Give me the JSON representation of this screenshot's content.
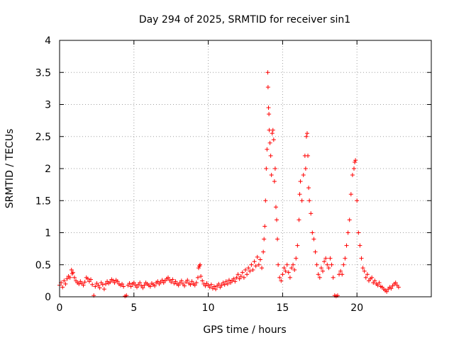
{
  "chart_data": {
    "type": "scatter",
    "title": "Day 294 of 2025, SRMTID for receiver sin1",
    "xlabel": "GPS time / hours",
    "ylabel": "SRMTID / TECUs",
    "xlim": [
      0,
      25
    ],
    "ylim": [
      0,
      4
    ],
    "xticks": [
      0,
      5,
      10,
      15,
      20
    ],
    "yticks": [
      0,
      0.5,
      1,
      1.5,
      2,
      2.5,
      3,
      3.5,
      4
    ],
    "xtick_labels": [
      "0",
      "5",
      "10",
      "15",
      "20"
    ],
    "ytick_labels": [
      "0",
      "0.5",
      "1",
      "1.5",
      "2",
      "2.5",
      "3",
      "3.5",
      "4"
    ],
    "grid": true,
    "marker": "+",
    "marker_color": "#ff0000",
    "series": [
      {
        "name": "sin1",
        "points": [
          [
            0.0,
            0.18
          ],
          [
            0.1,
            0.22
          ],
          [
            0.2,
            0.15
          ],
          [
            0.3,
            0.25
          ],
          [
            0.4,
            0.2
          ],
          [
            0.5,
            0.28
          ],
          [
            0.6,
            0.32
          ],
          [
            0.7,
            0.3
          ],
          [
            0.8,
            0.42
          ],
          [
            0.85,
            0.36
          ],
          [
            0.9,
            0.38
          ],
          [
            1.0,
            0.3
          ],
          [
            1.1,
            0.25
          ],
          [
            1.2,
            0.22
          ],
          [
            1.3,
            0.2
          ],
          [
            1.4,
            0.24
          ],
          [
            1.5,
            0.21
          ],
          [
            1.6,
            0.18
          ],
          [
            1.7,
            0.23
          ],
          [
            1.8,
            0.3
          ],
          [
            1.9,
            0.28
          ],
          [
            2.0,
            0.24
          ],
          [
            2.1,
            0.27
          ],
          [
            2.2,
            0.19
          ],
          [
            2.3,
            0.02
          ],
          [
            2.4,
            0.16
          ],
          [
            2.5,
            0.21
          ],
          [
            2.6,
            0.18
          ],
          [
            2.7,
            0.14
          ],
          [
            2.8,
            0.22
          ],
          [
            2.9,
            0.19
          ],
          [
            3.0,
            0.12
          ],
          [
            3.1,
            0.2
          ],
          [
            3.2,
            0.24
          ],
          [
            3.3,
            0.21
          ],
          [
            3.4,
            0.23
          ],
          [
            3.5,
            0.27
          ],
          [
            3.6,
            0.25
          ],
          [
            3.7,
            0.22
          ],
          [
            3.8,
            0.26
          ],
          [
            3.9,
            0.24
          ],
          [
            4.0,
            0.2
          ],
          [
            4.1,
            0.18
          ],
          [
            4.2,
            0.2
          ],
          [
            4.3,
            0.16
          ],
          [
            4.4,
            0.01
          ],
          [
            4.5,
            0.02
          ],
          [
            4.6,
            0.18
          ],
          [
            4.7,
            0.21
          ],
          [
            4.8,
            0.16
          ],
          [
            4.9,
            0.2
          ],
          [
            5.0,
            0.22
          ],
          [
            5.1,
            0.18
          ],
          [
            5.2,
            0.15
          ],
          [
            5.3,
            0.19
          ],
          [
            5.4,
            0.22
          ],
          [
            5.5,
            0.17
          ],
          [
            5.6,
            0.14
          ],
          [
            5.7,
            0.18
          ],
          [
            5.8,
            0.22
          ],
          [
            5.9,
            0.2
          ],
          [
            6.0,
            0.18
          ],
          [
            6.1,
            0.16
          ],
          [
            6.2,
            0.21
          ],
          [
            6.3,
            0.19
          ],
          [
            6.4,
            0.17
          ],
          [
            6.5,
            0.22
          ],
          [
            6.6,
            0.24
          ],
          [
            6.7,
            0.2
          ],
          [
            6.8,
            0.23
          ],
          [
            6.9,
            0.26
          ],
          [
            7.0,
            0.22
          ],
          [
            7.1,
            0.25
          ],
          [
            7.2,
            0.28
          ],
          [
            7.3,
            0.3
          ],
          [
            7.4,
            0.26
          ],
          [
            7.5,
            0.23
          ],
          [
            7.6,
            0.27
          ],
          [
            7.7,
            0.21
          ],
          [
            7.8,
            0.24
          ],
          [
            7.9,
            0.2
          ],
          [
            8.0,
            0.18
          ],
          [
            8.1,
            0.22
          ],
          [
            8.2,
            0.25
          ],
          [
            8.3,
            0.2
          ],
          [
            8.4,
            0.17
          ],
          [
            8.5,
            0.23
          ],
          [
            8.6,
            0.26
          ],
          [
            8.7,
            0.21
          ],
          [
            8.8,
            0.19
          ],
          [
            8.9,
            0.24
          ],
          [
            9.0,
            0.2
          ],
          [
            9.1,
            0.18
          ],
          [
            9.2,
            0.22
          ],
          [
            9.3,
            0.3
          ],
          [
            9.35,
            0.45
          ],
          [
            9.4,
            0.48
          ],
          [
            9.45,
            0.5
          ],
          [
            9.5,
            0.32
          ],
          [
            9.6,
            0.25
          ],
          [
            9.7,
            0.2
          ],
          [
            9.8,
            0.17
          ],
          [
            9.9,
            0.21
          ],
          [
            10.0,
            0.18
          ],
          [
            10.1,
            0.15
          ],
          [
            10.2,
            0.19
          ],
          [
            10.3,
            0.13
          ],
          [
            10.4,
            0.16
          ],
          [
            10.5,
            0.12
          ],
          [
            10.6,
            0.17
          ],
          [
            10.7,
            0.2
          ],
          [
            10.8,
            0.15
          ],
          [
            10.9,
            0.18
          ],
          [
            11.0,
            0.22
          ],
          [
            11.1,
            0.19
          ],
          [
            11.2,
            0.24
          ],
          [
            11.3,
            0.2
          ],
          [
            11.4,
            0.26
          ],
          [
            11.5,
            0.22
          ],
          [
            11.6,
            0.25
          ],
          [
            11.7,
            0.28
          ],
          [
            11.8,
            0.24
          ],
          [
            11.9,
            0.3
          ],
          [
            12.0,
            0.35
          ],
          [
            12.1,
            0.28
          ],
          [
            12.2,
            0.32
          ],
          [
            12.3,
            0.38
          ],
          [
            12.4,
            0.3
          ],
          [
            12.5,
            0.42
          ],
          [
            12.6,
            0.35
          ],
          [
            12.7,
            0.45
          ],
          [
            12.8,
            0.4
          ],
          [
            12.9,
            0.5
          ],
          [
            13.0,
            0.42
          ],
          [
            13.1,
            0.55
          ],
          [
            13.2,
            0.48
          ],
          [
            13.3,
            0.62
          ],
          [
            13.4,
            0.5
          ],
          [
            13.5,
            0.58
          ],
          [
            13.6,
            0.45
          ],
          [
            13.7,
            0.7
          ],
          [
            13.75,
            0.9
          ],
          [
            13.8,
            1.1
          ],
          [
            13.85,
            1.5
          ],
          [
            13.9,
            2.0
          ],
          [
            13.95,
            2.3
          ],
          [
            14.0,
            3.5
          ],
          [
            14.02,
            3.27
          ],
          [
            14.05,
            2.95
          ],
          [
            14.08,
            2.85
          ],
          [
            14.1,
            2.6
          ],
          [
            14.15,
            2.4
          ],
          [
            14.2,
            2.2
          ],
          [
            14.25,
            1.9
          ],
          [
            14.3,
            2.55
          ],
          [
            14.35,
            2.6
          ],
          [
            14.4,
            2.45
          ],
          [
            14.45,
            1.8
          ],
          [
            14.5,
            2.0
          ],
          [
            14.55,
            1.4
          ],
          [
            14.6,
            1.2
          ],
          [
            14.65,
            0.9
          ],
          [
            14.7,
            0.5
          ],
          [
            14.8,
            0.3
          ],
          [
            14.9,
            0.25
          ],
          [
            15.0,
            0.35
          ],
          [
            15.1,
            0.45
          ],
          [
            15.2,
            0.4
          ],
          [
            15.3,
            0.5
          ],
          [
            15.4,
            0.38
          ],
          [
            15.5,
            0.3
          ],
          [
            15.6,
            0.45
          ],
          [
            15.7,
            0.5
          ],
          [
            15.8,
            0.42
          ],
          [
            15.9,
            0.6
          ],
          [
            16.0,
            0.8
          ],
          [
            16.1,
            1.2
          ],
          [
            16.15,
            1.6
          ],
          [
            16.2,
            1.8
          ],
          [
            16.3,
            1.5
          ],
          [
            16.4,
            1.9
          ],
          [
            16.5,
            2.2
          ],
          [
            16.55,
            2.0
          ],
          [
            16.6,
            2.5
          ],
          [
            16.65,
            2.55
          ],
          [
            16.7,
            2.2
          ],
          [
            16.75,
            1.7
          ],
          [
            16.8,
            1.5
          ],
          [
            16.9,
            1.3
          ],
          [
            17.0,
            1.0
          ],
          [
            17.1,
            0.9
          ],
          [
            17.2,
            0.7
          ],
          [
            17.3,
            0.5
          ],
          [
            17.4,
            0.35
          ],
          [
            17.5,
            0.3
          ],
          [
            17.6,
            0.45
          ],
          [
            17.7,
            0.4
          ],
          [
            17.8,
            0.55
          ],
          [
            17.9,
            0.6
          ],
          [
            18.0,
            0.5
          ],
          [
            18.1,
            0.45
          ],
          [
            18.2,
            0.6
          ],
          [
            18.3,
            0.5
          ],
          [
            18.4,
            0.3
          ],
          [
            18.5,
            0.02
          ],
          [
            18.6,
            0.01
          ],
          [
            18.7,
            0.02
          ],
          [
            18.8,
            0.35
          ],
          [
            18.9,
            0.4
          ],
          [
            19.0,
            0.35
          ],
          [
            19.1,
            0.5
          ],
          [
            19.2,
            0.6
          ],
          [
            19.3,
            0.8
          ],
          [
            19.4,
            1.0
          ],
          [
            19.5,
            1.2
          ],
          [
            19.6,
            1.6
          ],
          [
            19.7,
            1.9
          ],
          [
            19.8,
            2.0
          ],
          [
            19.85,
            2.1
          ],
          [
            19.9,
            2.13
          ],
          [
            20.0,
            1.5
          ],
          [
            20.1,
            1.0
          ],
          [
            20.2,
            0.8
          ],
          [
            20.3,
            0.6
          ],
          [
            20.4,
            0.45
          ],
          [
            20.5,
            0.4
          ],
          [
            20.6,
            0.3
          ],
          [
            20.7,
            0.35
          ],
          [
            20.8,
            0.25
          ],
          [
            20.9,
            0.28
          ],
          [
            21.0,
            0.3
          ],
          [
            21.1,
            0.22
          ],
          [
            21.2,
            0.25
          ],
          [
            21.3,
            0.2
          ],
          [
            21.4,
            0.18
          ],
          [
            21.5,
            0.22
          ],
          [
            21.6,
            0.16
          ],
          [
            21.7,
            0.15
          ],
          [
            21.8,
            0.12
          ],
          [
            21.9,
            0.1
          ],
          [
            22.0,
            0.08
          ],
          [
            22.1,
            0.12
          ],
          [
            22.2,
            0.15
          ],
          [
            22.3,
            0.13
          ],
          [
            22.4,
            0.17
          ],
          [
            22.5,
            0.2
          ],
          [
            22.6,
            0.22
          ],
          [
            22.7,
            0.18
          ],
          [
            22.8,
            0.15
          ]
        ]
      }
    ]
  }
}
